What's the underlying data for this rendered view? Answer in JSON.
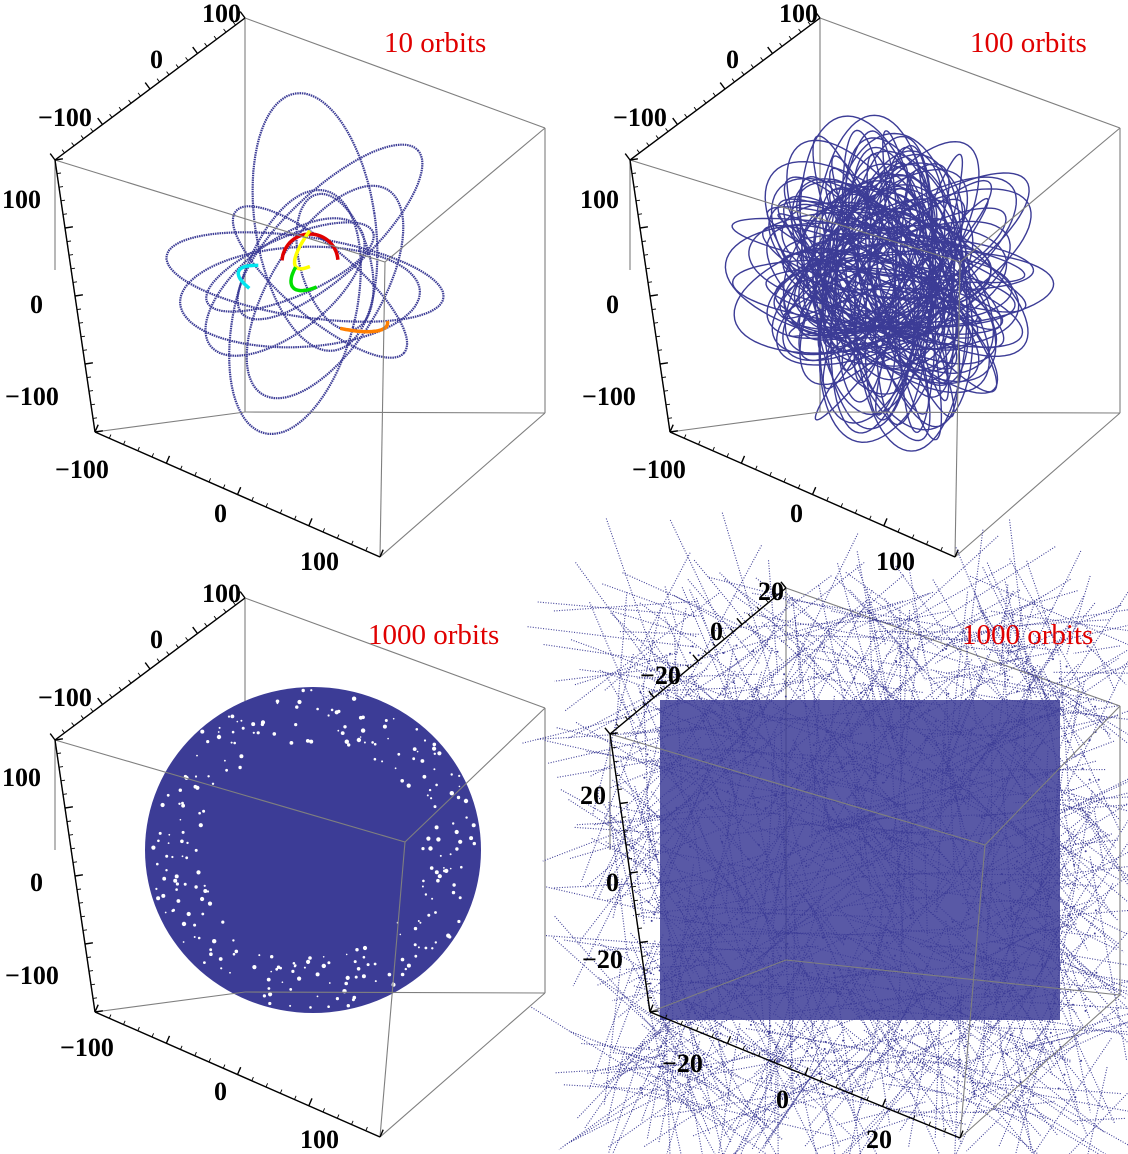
{
  "figure": {
    "accent_color": "#e00000",
    "orbit_color": "#3c3c96"
  },
  "chart_data": [
    {
      "type": "scatter",
      "subtype": "3d-orbit-plot",
      "annotation": "10 orbits",
      "x_ticks": [
        "−100",
        "0",
        "100"
      ],
      "y_ticks": [
        "−100",
        "0",
        "100"
      ],
      "z_ticks": [
        "−100",
        "0",
        "100"
      ],
      "xlim": [
        -140,
        140
      ],
      "ylim": [
        -140,
        140
      ],
      "zlim": [
        -140,
        140
      ],
      "orbit_count": 10,
      "series": [
        {
          "color": "#3c3c96",
          "kind": "orbit"
        },
        {
          "color": "#e00000",
          "kind": "highlighted-arc"
        },
        {
          "color": "#ffff00",
          "kind": "highlighted-arc"
        },
        {
          "color": "#00e000",
          "kind": "highlighted-arc"
        },
        {
          "color": "#00e5ee",
          "kind": "highlighted-arc"
        },
        {
          "color": "#ff7f00",
          "kind": "highlighted-arc"
        }
      ]
    },
    {
      "type": "scatter",
      "subtype": "3d-orbit-plot",
      "annotation": "100 orbits",
      "x_ticks": [
        "−100",
        "0",
        "100"
      ],
      "y_ticks": [
        "−100",
        "0",
        "100"
      ],
      "z_ticks": [
        "−100",
        "0",
        "100"
      ],
      "xlim": [
        -140,
        140
      ],
      "ylim": [
        -140,
        140
      ],
      "zlim": [
        -140,
        140
      ],
      "orbit_count": 100
    },
    {
      "type": "scatter",
      "subtype": "3d-orbit-plot",
      "annotation": "1000 orbits",
      "x_ticks": [
        "−100",
        "0",
        "100"
      ],
      "y_ticks": [
        "−100",
        "0",
        "100"
      ],
      "z_ticks": [
        "−100",
        "0",
        "100"
      ],
      "xlim": [
        -140,
        140
      ],
      "ylim": [
        -140,
        140
      ],
      "zlim": [
        -140,
        140
      ],
      "orbit_count": 1000
    },
    {
      "type": "scatter",
      "subtype": "3d-orbit-plot",
      "annotation": "1000 orbits",
      "x_ticks": [
        "−20",
        "0",
        "20"
      ],
      "y_ticks": [
        "−20",
        "0",
        "20"
      ],
      "z_ticks": [
        "−20",
        "0",
        "20"
      ],
      "xlim": [
        -30,
        30
      ],
      "ylim": [
        -30,
        30
      ],
      "zlim": [
        -30,
        30
      ],
      "orbit_count": 1000
    }
  ]
}
